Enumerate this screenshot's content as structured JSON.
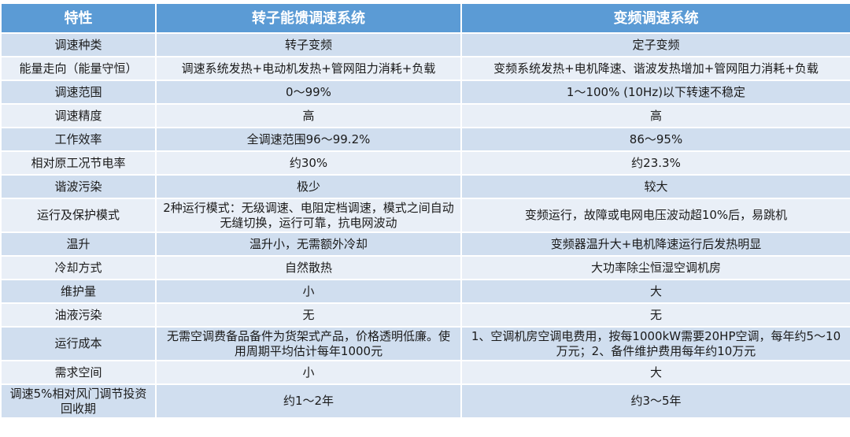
{
  "headers": [
    "特性",
    "转子能馈调速系统",
    "变频调速系统"
  ],
  "rows": [
    [
      "调速种类",
      "转子变频",
      "定子变频"
    ],
    [
      "能量走向（能量守恒）",
      "调速系统发热+电动机发热+管网阻力消耗+负载",
      "变频系统发热+电机降速、谐波发热增加+管网阻力消耗+负载"
    ],
    [
      "调速范围",
      "0～99%",
      "1～100% (10Hz)以下转速不稳定"
    ],
    [
      "调速精度",
      "高",
      "高"
    ],
    [
      "工作效率",
      "全调速范围96～99.2%",
      "86～95%"
    ],
    [
      "相对原工况节电率",
      "约30%",
      "约23.3%"
    ],
    [
      "谐波污染",
      "极少",
      "较大"
    ],
    [
      "运行及保护模式",
      "2种运行模式：无级调速、电阻定档调速，模式之间自动无缝切换，运行可靠，抗电网波动",
      "变频运行，故障或电网电压波动超10%后，易跳机"
    ],
    [
      "温升",
      "温升小，无需额外冷却",
      "变频器温升大+电机降速运行后发热明显"
    ],
    [
      "冷却方式",
      "自然散热",
      "大功率除尘恒湿空调机房"
    ],
    [
      "维护量",
      "小",
      "大"
    ],
    [
      "油液污染",
      "无",
      "无"
    ],
    [
      "运行成本",
      "无需空调费备品备件为货架式产品，价格透明低廉。使用周期平均估计每年1000元",
      "1、空调机房空调电费用，按每1000kW需要20HP空调，每年约5～10万元；2、备件维护费用每年约10万元"
    ],
    [
      "需求空间",
      "小",
      "大"
    ],
    [
      "调速5%相对风门调节投资回收期",
      "约1～2年",
      "约3～5年"
    ]
  ],
  "colors": {
    "header": "#5B9BD5",
    "row_dark": "#D0DEEF",
    "row_light": "#E9EFF7"
  }
}
